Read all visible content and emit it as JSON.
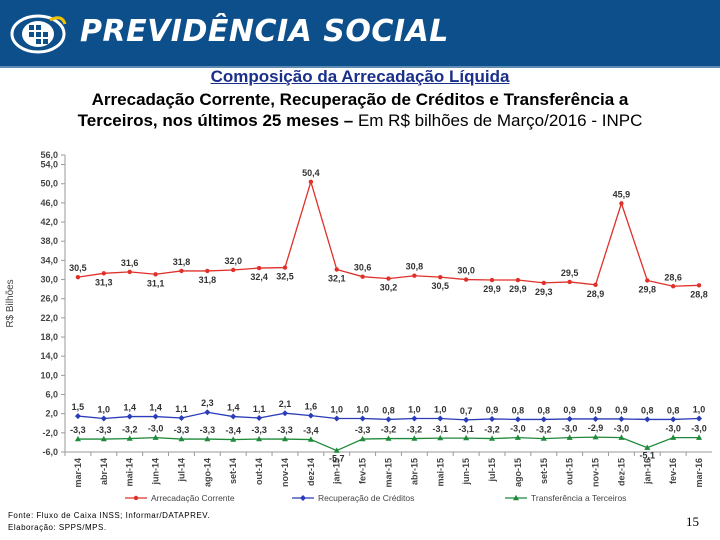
{
  "header": {
    "brand": "PREVIDÊNCIA SOCIAL"
  },
  "titles": {
    "main": "Composição da Arrecadação Líquida",
    "sub1": "Arrecadação Corrente, Recuperação de Créditos e Transferência a",
    "sub2_bold": "Terceiros, nos últimos 25 meses –",
    "sub2_rest": " Em R$ bilhões de Março/2016 - INPC"
  },
  "footer": {
    "source": "Fonte: Fluxo de Caixa INSS; Informar/DATAPREV.",
    "elab": "Elaboração: SPPS/MPS.",
    "page": "15"
  },
  "colors": {
    "corrente": "#e0302a",
    "recuperacao": "#2a3cb8",
    "transferencia": "#1f8a3a",
    "header": "#0d4f8b"
  },
  "chart_data": {
    "type": "line",
    "ylabel": "R$ Bilhões",
    "ylim": [
      -6.0,
      56.0
    ],
    "yticks": [
      "56,0",
      "54,0",
      "50,0",
      "46,0",
      "42,0",
      "38,0",
      "34,0",
      "30,0",
      "26,0",
      "22,0",
      "18,0",
      "14,0",
      "10,0",
      "6,0",
      "2,0",
      "-2,0",
      "-6,0"
    ],
    "ytick_values": [
      56,
      54,
      50,
      46,
      42,
      38,
      34,
      30,
      26,
      22,
      18,
      14,
      10,
      6,
      2,
      -2,
      -6
    ],
    "categories": [
      "mar-14",
      "abr-14",
      "mai-14",
      "jun-14",
      "jul-14",
      "ago-14",
      "set-14",
      "out-14",
      "nov-14",
      "dez-14",
      "jan-15",
      "fev-15",
      "mar-15",
      "abr-15",
      "mai-15",
      "jun-15",
      "jul-15",
      "ago-15",
      "set-15",
      "out-15",
      "nov-15",
      "dez-15",
      "jan-16",
      "fev-16",
      "mar-16"
    ],
    "series": [
      {
        "name": "Arrecadação Corrente",
        "values": [
          30.5,
          31.3,
          31.6,
          31.1,
          31.8,
          31.8,
          32.0,
          32.4,
          32.5,
          50.4,
          32.1,
          30.6,
          30.2,
          30.8,
          30.5,
          30.0,
          29.9,
          29.9,
          29.3,
          29.5,
          28.9,
          45.9,
          29.8,
          28.6,
          28.8
        ],
        "labels": [
          "30,5",
          "31,3",
          "31,6",
          "31,1",
          "31,8",
          "31,8",
          "32,0",
          "32,4",
          "32,5",
          "50,4",
          "32,1",
          "30,6",
          "30,2",
          "30,8",
          "30,5",
          "30,0",
          "29,9",
          "29,9",
          "29,3",
          "29,5",
          "28,9",
          "45,9",
          "29,8",
          "28,6",
          "28,8"
        ]
      },
      {
        "name": "Recuperação de Créditos",
        "values": [
          1.5,
          1.0,
          1.4,
          1.4,
          1.1,
          2.3,
          1.4,
          1.1,
          2.1,
          1.6,
          1.0,
          1.0,
          0.8,
          1.0,
          1.0,
          0.7,
          0.9,
          0.8,
          0.8,
          0.9,
          0.9,
          0.9,
          0.8,
          0.8,
          1.0
        ],
        "labels": [
          "1,5",
          "1,0",
          "1,4",
          "1,4",
          "1,1",
          "2,3",
          "1,4",
          "1,1",
          "2,1",
          "1,6",
          "1,0",
          "1,0",
          "0,8",
          "1,0",
          "1,0",
          "0,7",
          "0,9",
          "0,8",
          "0,8",
          "0,9",
          "0,9",
          "0,9",
          "0,8",
          "0,8",
          "1,0"
        ]
      },
      {
        "name": "Transferência a Terceiros",
        "values": [
          -3.3,
          -3.3,
          -3.2,
          -3.0,
          -3.3,
          -3.3,
          -3.4,
          -3.3,
          -3.3,
          -3.4,
          -5.7,
          -3.3,
          -3.2,
          -3.2,
          -3.1,
          -3.1,
          -3.2,
          -3.0,
          -3.2,
          -3.0,
          -2.9,
          -3.0,
          -5.1,
          -3.0,
          -3.0
        ],
        "labels": [
          "-3,3",
          "-3,3",
          "-3,2",
          "-3,0",
          "-3,3",
          "-3,3",
          "-3,4",
          "-3,3",
          "-3,3",
          "-3,4",
          "-5,7",
          "-3,3",
          "-3,2",
          "-3,2",
          "-3,1",
          "-3,1",
          "-3,2",
          "-3,0",
          "-3,2",
          "-3,0",
          "-2,9",
          "-3,0",
          "-5,1",
          "-3,0",
          "-3,0"
        ]
      }
    ]
  }
}
